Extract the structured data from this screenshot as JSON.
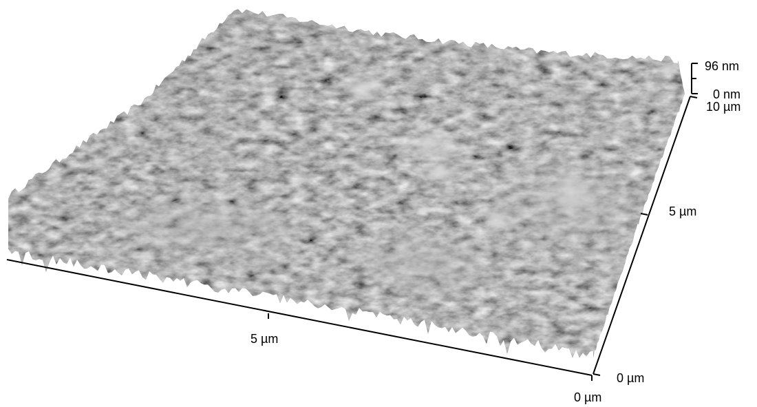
{
  "image": {
    "description_type": "afm-3d-surface-topography",
    "colors": {
      "background": "#ffffff",
      "surface_dark": "#2e2e2e",
      "surface_mid": "#6e6e6e",
      "surface_light": "#bdbdbd",
      "axis": "#000000"
    }
  },
  "axes": {
    "front_axis": {
      "tick_mid_label": "5 µm",
      "tick_end_label": "0 µm"
    },
    "right_axis": {
      "tick_start_label": "0 µm",
      "tick_mid_label": "5 µm",
      "tick_end_label": "10 µm"
    },
    "z_axis": {
      "top_label": "96 nm",
      "bottom_label": "0 nm"
    }
  }
}
